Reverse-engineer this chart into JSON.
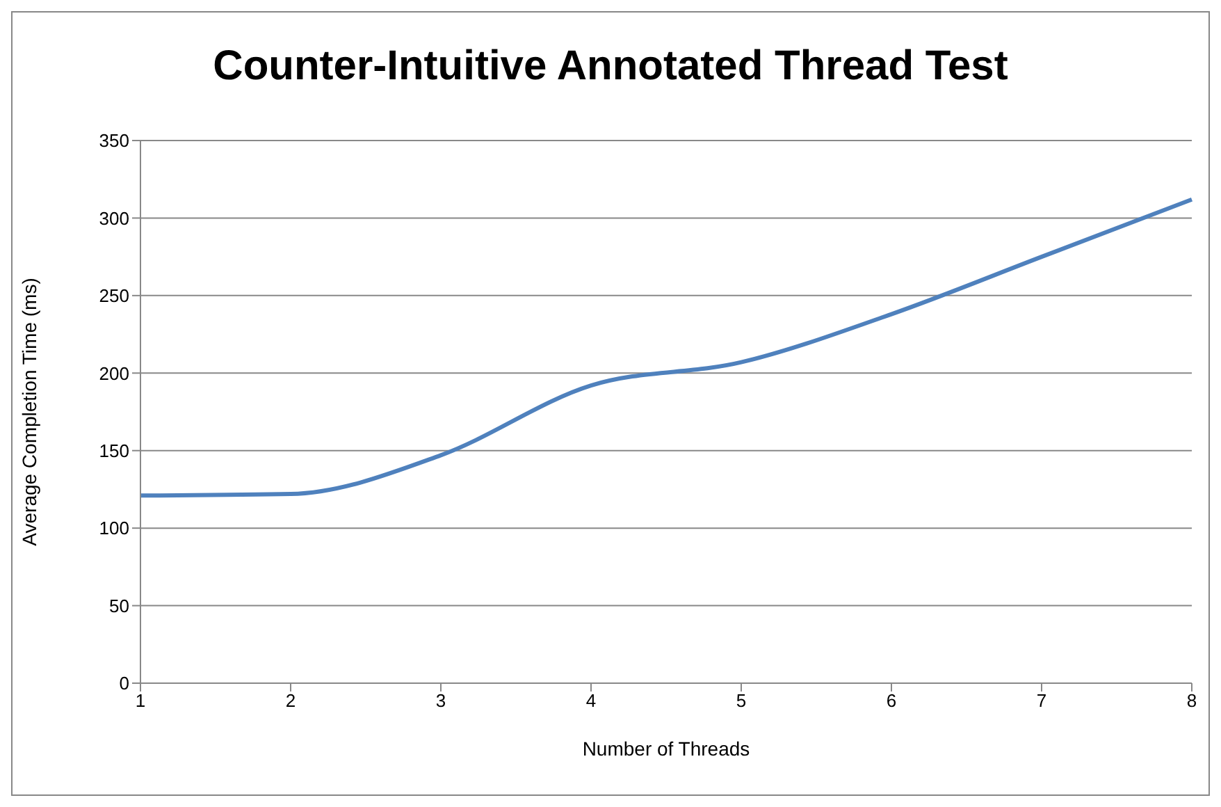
{
  "chart_data": {
    "type": "line",
    "title": "Counter-Intuitive Annotated Thread Test",
    "xlabel": "Number of Threads",
    "ylabel": "Average Completion Time (ms)",
    "categories": [
      "1",
      "2",
      "3",
      "4",
      "5",
      "6",
      "7",
      "8"
    ],
    "values": [
      121,
      122,
      147,
      192,
      207,
      238,
      275,
      312
    ],
    "color": "#4f81bd",
    "ylim": [
      0,
      350
    ],
    "yticks": [
      0,
      50,
      100,
      150,
      200,
      250,
      300,
      350
    ],
    "grid": "y",
    "marker": "none",
    "line_style": "solid"
  }
}
